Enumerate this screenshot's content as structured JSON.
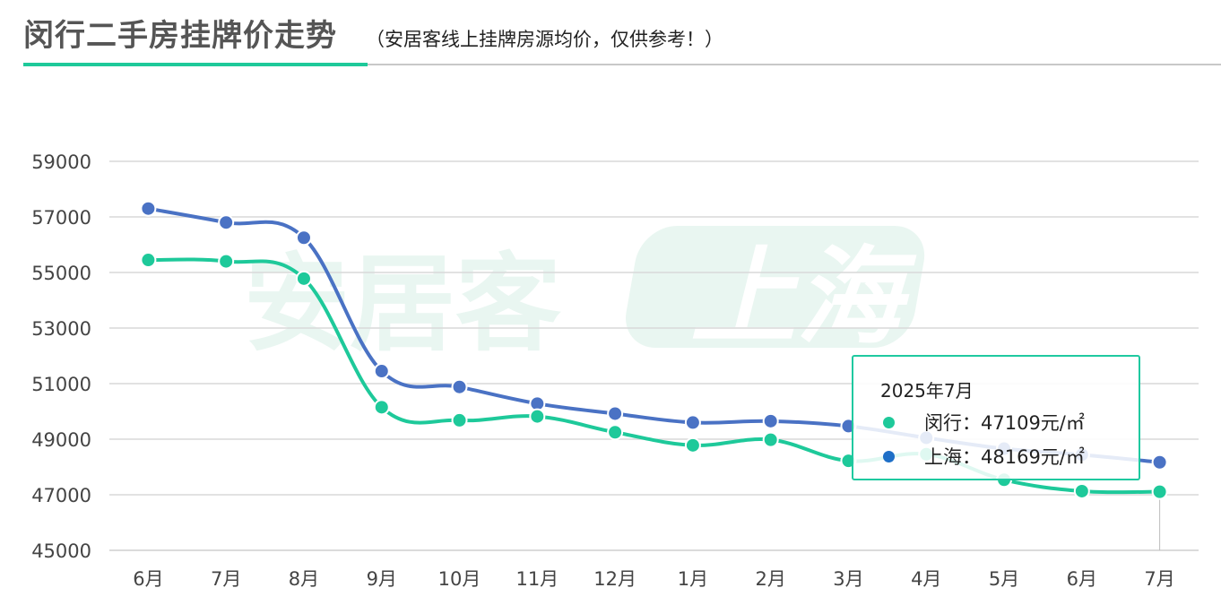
{
  "header": {
    "title": "闵行二手房挂牌价走势",
    "subtitle": "（安居客线上挂牌房源均价，仅供参考！）"
  },
  "watermark": {
    "brand": "安居客",
    "city": "上海"
  },
  "colors": {
    "minhang": "#1ec99a",
    "shanghai": "#4a72c4",
    "accent": "#1ec99a",
    "grid": "#d9d9d9",
    "watermark": "#e9f6f1"
  },
  "tooltip": {
    "title": "2025年7月",
    "rows": [
      {
        "label": "闵行：47109元/㎡",
        "color": "#1ec99a"
      },
      {
        "label": "上海：48169元/㎡",
        "color": "#1e6fc7"
      }
    ]
  },
  "chart_data": {
    "type": "line",
    "categories": [
      "6月",
      "7月",
      "8月",
      "9月",
      "10月",
      "11月",
      "12月",
      "1月",
      "2月",
      "3月",
      "4月",
      "5月",
      "6月",
      "7月"
    ],
    "yticks": [
      45000,
      47000,
      49000,
      51000,
      53000,
      55000,
      57000,
      59000
    ],
    "ylim": [
      45000,
      59000
    ],
    "grid": true,
    "legend": "none",
    "highlight_index": 13,
    "series": [
      {
        "name": "上海",
        "color": "#4a72c4",
        "values": [
          57300,
          56800,
          56250,
          51450,
          50880,
          50280,
          49920,
          49600,
          49650,
          49470,
          49050,
          48660,
          48440,
          48169
        ]
      },
      {
        "name": "闵行",
        "color": "#1ec99a",
        "values": [
          55450,
          55400,
          54780,
          50150,
          49680,
          49820,
          49250,
          48780,
          48980,
          48220,
          48460,
          47540,
          47130,
          47109
        ]
      }
    ]
  }
}
